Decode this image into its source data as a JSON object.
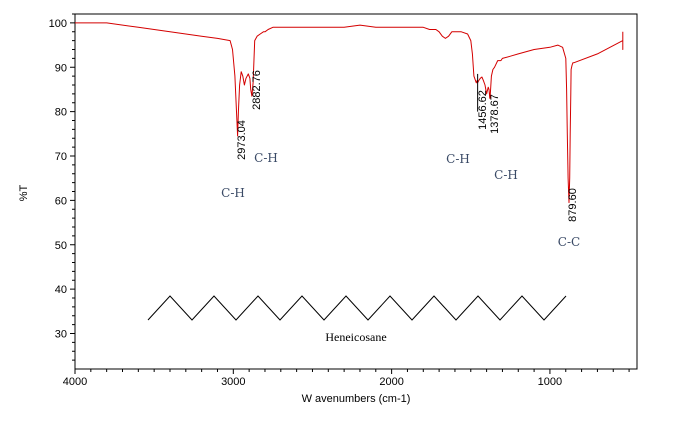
{
  "chart_data": {
    "type": "line",
    "title": "",
    "xlabel": "W avenumbers (cm-1)",
    "ylabel": "%T",
    "xlim": [
      4000,
      450
    ],
    "ylim": [
      22,
      102
    ],
    "x_reversed": true,
    "grid": false,
    "legend": "none",
    "x_ticks": [
      4000,
      3000,
      2000,
      1000
    ],
    "x_tick_labels": [
      "4000",
      "3000",
      "2000",
      "1000"
    ],
    "y_ticks": [
      30,
      40,
      50,
      60,
      70,
      80,
      90,
      100
    ],
    "y_tick_labels": [
      "30",
      "40",
      "50",
      "60",
      "70",
      "80",
      "90",
      "100"
    ],
    "line_color": "#d40000",
    "series": [
      {
        "x": [
          4000,
          3800,
          3600,
          3400,
          3200,
          3100,
          3020,
          3005,
          2990,
          2980,
          2973.04,
          2968,
          2960,
          2950,
          2940,
          2930,
          2920,
          2905,
          2895,
          2890,
          2882.76,
          2875,
          2865,
          2850,
          2830,
          2810,
          2800,
          2780,
          2750,
          2700,
          2600,
          2500,
          2400,
          2300,
          2200,
          2100,
          2050,
          2000,
          1950,
          1900,
          1850,
          1800,
          1760,
          1720,
          1700,
          1680,
          1660,
          1640,
          1620,
          1600,
          1560,
          1520,
          1500,
          1490,
          1480,
          1470,
          1465,
          1460,
          1456.62,
          1450,
          1440,
          1430,
          1420,
          1410,
          1400,
          1390,
          1385,
          1380,
          1378.67,
          1375,
          1370,
          1360,
          1350,
          1330,
          1310,
          1300,
          1250,
          1200,
          1100,
          1000,
          950,
          920,
          900,
          895,
          890,
          885,
          879.6,
          875,
          872,
          868,
          866,
          860,
          855,
          850,
          700,
          540,
          540,
          540
        ],
        "y": [
          100,
          100,
          99,
          98,
          97,
          96.5,
          96,
          94,
          88,
          80,
          74.5,
          80,
          86,
          89,
          88,
          86,
          87.5,
          88.5,
          87.5,
          85,
          83.5,
          86.5,
          96,
          97,
          97.5,
          98,
          98,
          98.5,
          99,
          99,
          99,
          99,
          99,
          99,
          99.5,
          99,
          99,
          99,
          99,
          99,
          99,
          99,
          98.5,
          98.5,
          98,
          97,
          96.5,
          97,
          98,
          98,
          98,
          97.5,
          96,
          93,
          88,
          87,
          86.5,
          87,
          86.5,
          87,
          87.5,
          87.8,
          87,
          86,
          84,
          85.5,
          85,
          83,
          83,
          85,
          88,
          89.5,
          90,
          91.5,
          91.5,
          92,
          92.5,
          93,
          94,
          94.5,
          95,
          94.5,
          92,
          85,
          75,
          65,
          59.5,
          65,
          75,
          84,
          89.5,
          90.5,
          91,
          91,
          93,
          96,
          94,
          98
        ]
      }
    ],
    "peak_labels": [
      "2973.04",
      "2882.76",
      "1456.62",
      "1378.67",
      "879.60"
    ],
    "bond_labels": [
      "C-H",
      "C-H",
      "C-H",
      "C-H",
      "C-C"
    ],
    "molecule_name": "Heneicosane",
    "zigzag_vertices": 20
  }
}
